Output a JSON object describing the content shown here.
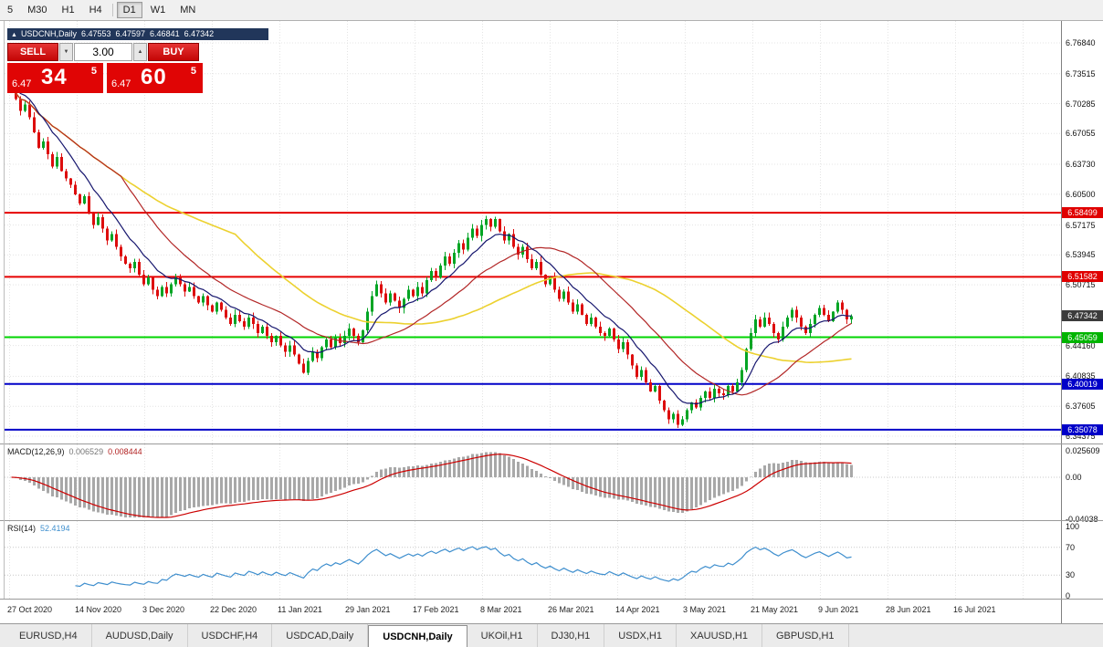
{
  "toolbar": {
    "timeframes": [
      "5",
      "M30",
      "H1",
      "H4",
      "D1",
      "W1",
      "MN"
    ],
    "active": "D1",
    "separator_after": "H4"
  },
  "chart": {
    "header": {
      "title": "USDCNH,Daily",
      "open": "6.47553",
      "high": "6.47597",
      "low": "6.46841",
      "close": "6.47342"
    }
  },
  "icons": {
    "collapse": "▲",
    "spinner_down": "▼",
    "spinner_up": "▲"
  },
  "trade_panel": {
    "sell_label": "SELL",
    "buy_label": "BUY",
    "volume": "3.00",
    "bid": {
      "prefix": "6.47",
      "big": "34",
      "sup": "5"
    },
    "ask": {
      "prefix": "6.47",
      "big": "60",
      "sup": "5"
    }
  },
  "price_axis": {
    "labels": [
      {
        "text": "6.76840",
        "value": 6.7684
      },
      {
        "text": "6.73515",
        "value": 6.73515
      },
      {
        "text": "6.70285",
        "value": 6.70285
      },
      {
        "text": "6.67055",
        "value": 6.67055
      },
      {
        "text": "6.63730",
        "value": 6.6373
      },
      {
        "text": "6.60500",
        "value": 6.605
      },
      {
        "text": "6.57175",
        "value": 6.57175
      },
      {
        "text": "6.53945",
        "value": 6.53945
      },
      {
        "text": "6.50715",
        "value": 6.50715
      },
      {
        "text": "6.44160",
        "value": 6.4416
      },
      {
        "text": "6.40835",
        "value": 6.40835
      },
      {
        "text": "6.37605",
        "value": 6.37605
      },
      {
        "text": "6.34375",
        "value": 6.34375
      }
    ]
  },
  "indicators": {
    "macd": {
      "title": "MACD(12,26,9)",
      "fast": 12,
      "slow": 26,
      "signal": 9,
      "value_main": "0.006529",
      "value_signal": "0.008444",
      "axis_labels": [
        {
          "text": "0.025609",
          "value": 0.025609
        },
        {
          "text": "0.00",
          "value": 0
        },
        {
          "text": "-0.04038",
          "value": -0.04038
        }
      ],
      "histogram_color": "#a8a8a8",
      "signal_color": "#cc0000"
    },
    "rsi": {
      "title": "RSI(14)",
      "period": 14,
      "value": "52.4194",
      "axis_labels": [
        {
          "text": "100",
          "value": 100
        },
        {
          "text": "70",
          "value": 70
        },
        {
          "text": "30",
          "value": 30
        },
        {
          "text": "0",
          "value": 0
        }
      ],
      "levels": [
        70,
        30
      ],
      "color": "#3f8fce"
    }
  },
  "tabs": [
    {
      "label": "EURUSD,H4",
      "active": false
    },
    {
      "label": "AUDUSD,Daily",
      "active": false
    },
    {
      "label": "USDCHF,H4",
      "active": false
    },
    {
      "label": "USDCAD,Daily",
      "active": false
    },
    {
      "label": "USDCNH,Daily",
      "active": true
    },
    {
      "label": "UKOil,H1",
      "active": false
    },
    {
      "label": "DJ30,H1",
      "active": false
    },
    {
      "label": "USDX,H1",
      "active": false
    },
    {
      "label": "XAUUSD,H1",
      "active": false
    },
    {
      "label": "GBPUSD,H1",
      "active": false
    }
  ],
  "chart_data": {
    "type": "candlestick",
    "symbol": "USDCNH",
    "timeframe": "Daily",
    "dates": [
      "27 Oct 2020",
      "14 Nov 2020",
      "3 Dec 2020",
      "22 Dec 2020",
      "11 Jan 2021",
      "29 Jan 2021",
      "17 Feb 2021",
      "8 Mar 2021",
      "26 Mar 2021",
      "14 Apr 2021",
      "3 May 2021",
      "21 May 2021",
      "9 Jun 2021",
      "28 Jun 2021",
      "16 Jul 2021"
    ],
    "price_range": {
      "top": 6.79204,
      "bottom": 6.3358
    },
    "current_bar": {
      "open": 6.47553,
      "high": 6.47597,
      "low": 6.46841,
      "close": 6.47342
    },
    "candle_colors": {
      "up": "#00a524",
      "down": "#dd0d0d"
    },
    "closes": [
      6.72,
      6.708,
      6.695,
      6.702,
      6.688,
      6.672,
      6.655,
      6.662,
      6.648,
      6.635,
      6.645,
      6.63,
      6.622,
      6.615,
      6.605,
      6.595,
      6.603,
      6.585,
      6.572,
      6.58,
      6.568,
      6.555,
      6.562,
      6.548,
      6.538,
      6.53,
      6.525,
      6.532,
      6.518,
      6.508,
      6.515,
      6.502,
      6.495,
      6.505,
      6.498,
      6.508,
      6.515,
      6.508,
      6.5,
      6.505,
      6.495,
      6.488,
      6.495,
      6.485,
      6.478,
      6.488,
      6.48,
      6.472,
      6.465,
      6.475,
      6.468,
      6.462,
      6.472,
      6.465,
      6.455,
      6.462,
      6.452,
      6.445,
      6.452,
      6.442,
      6.435,
      6.442,
      6.432,
      6.422,
      6.412,
      6.425,
      6.435,
      6.428,
      6.44,
      6.448,
      6.44,
      6.45,
      6.444,
      6.452,
      6.46,
      6.452,
      6.445,
      6.458,
      6.478,
      6.495,
      6.508,
      6.498,
      6.488,
      6.498,
      6.49,
      6.482,
      6.492,
      6.502,
      6.495,
      6.505,
      6.498,
      6.512,
      6.522,
      6.515,
      6.528,
      6.538,
      6.53,
      6.542,
      6.552,
      6.545,
      6.558,
      6.568,
      6.56,
      6.572,
      6.578,
      6.57,
      6.578,
      6.565,
      6.555,
      6.562,
      6.548,
      6.54,
      6.548,
      6.535,
      6.525,
      6.532,
      6.518,
      6.508,
      6.515,
      6.502,
      6.492,
      6.5,
      6.488,
      6.478,
      6.486,
      6.475,
      6.465,
      6.472,
      6.462,
      6.455,
      6.452,
      6.46,
      6.448,
      6.438,
      6.445,
      6.432,
      6.42,
      6.408,
      6.415,
      6.402,
      6.392,
      6.398,
      6.382,
      6.372,
      6.362,
      6.368,
      6.356,
      6.362,
      6.372,
      6.38,
      6.375,
      6.385,
      6.392,
      6.385,
      6.395,
      6.39,
      6.388,
      6.398,
      6.392,
      6.402,
      6.415,
      6.438,
      6.455,
      6.47,
      6.462,
      6.472,
      6.465,
      6.455,
      6.448,
      6.462,
      6.472,
      6.48,
      6.472,
      6.462,
      6.455,
      6.465,
      6.475,
      6.482,
      6.475,
      6.468,
      6.478,
      6.488,
      6.48,
      6.47,
      6.47342
    ],
    "moving_averages": [
      {
        "kind": "sma",
        "period": 50,
        "color": "#ecd12f",
        "width": 1.6
      },
      {
        "kind": "sma",
        "period": 25,
        "color": "#b22626",
        "width": 1.2
      },
      {
        "kind": "ema",
        "period": 10,
        "color": "#16166e",
        "width": 1.2
      }
    ],
    "levels": [
      {
        "price": 6.58499,
        "label": "6.58499",
        "color": "#e60000",
        "badge": "#e00000",
        "line": "solid"
      },
      {
        "price": 6.51582,
        "label": "6.51582",
        "color": "#e60000",
        "badge": "#e00000",
        "line": "solid"
      },
      {
        "price": 6.47342,
        "label": "6.47342",
        "color": "#888888",
        "badge": "#3c3c3c",
        "line": "none"
      },
      {
        "price": 6.45059,
        "label": "6.45059",
        "color": "#00d500",
        "badge": "#00b400",
        "line": "solid"
      },
      {
        "price": 6.40019,
        "label": "6.40019",
        "color": "#0000c8",
        "badge": "#0000c8",
        "line": "solid"
      },
      {
        "price": 6.35078,
        "label": "6.35078",
        "color": "#0000c8",
        "badge": "#0000c8",
        "line": "solid"
      }
    ]
  }
}
